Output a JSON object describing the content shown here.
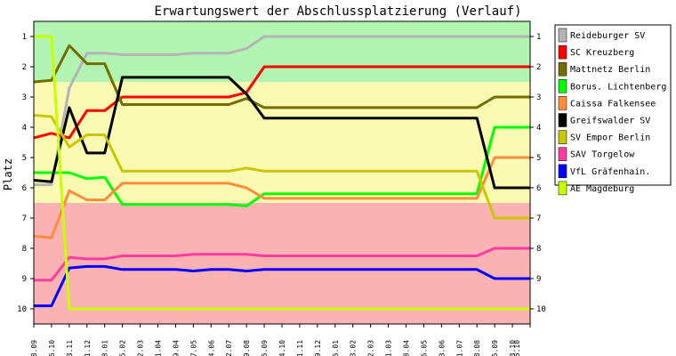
{
  "chart_data": {
    "type": "line",
    "title": "Erwartungswert der Abschlussplatzierung (Verlauf)",
    "xlabel": "",
    "ylabel": "Platz",
    "ylim": [
      10.5,
      0.5
    ],
    "y_ticks": [
      "1",
      "2",
      "3",
      "4",
      "5",
      "6",
      "7",
      "8",
      "9",
      "10"
    ],
    "bands": [
      {
        "from": 0.5,
        "to": 2.5,
        "color": "#b2f5b2"
      },
      {
        "from": 2.5,
        "to": 6.5,
        "color": "#fafab2"
      },
      {
        "from": 6.5,
        "to": 10.5,
        "color": "#fab2b2"
      }
    ],
    "x": [
      "18.09",
      "16.10",
      "13.11",
      "11.12",
      "08.01",
      "05.02",
      "02.03",
      "01.04",
      "29.04",
      "27.05",
      "24.06",
      "22.07",
      "19.08",
      "16.09",
      "14.10",
      "11.11",
      "09.12",
      "06.01",
      "03.02",
      "02.03",
      "31.03",
      "28.04",
      "26.05",
      "23.06",
      "21.07",
      "18.08",
      "15.09",
      "13.10",
      "16.10"
    ],
    "series": [
      {
        "name": "Reideburger SV",
        "color": "#b4b4b4",
        "values": [
          5.9,
          5.9,
          2.7,
          1.55,
          1.55,
          1.6,
          1.6,
          1.6,
          1.6,
          1.55,
          1.55,
          1.55,
          1.4,
          1.0,
          1.0,
          1.0,
          1.0,
          1.0,
          1.0,
          1.0,
          1.0,
          1.0,
          1.0,
          1.0,
          1.0,
          1.0,
          1.0,
          1.0,
          1.0
        ]
      },
      {
        "name": "SC Kreuzberg",
        "color": "#ff0000",
        "values": [
          4.35,
          4.2,
          4.35,
          3.45,
          3.45,
          3.0,
          3.0,
          3.0,
          3.0,
          3.0,
          3.0,
          3.0,
          2.85,
          2.0,
          2.0,
          2.0,
          2.0,
          2.0,
          2.0,
          2.0,
          2.0,
          2.0,
          2.0,
          2.0,
          2.0,
          2.0,
          2.0,
          2.0,
          2.0
        ]
      },
      {
        "name": "Mattnetz Berlin",
        "color": "#736e00",
        "values": [
          2.5,
          2.45,
          1.3,
          1.9,
          1.9,
          3.25,
          3.25,
          3.25,
          3.25,
          3.25,
          3.25,
          3.25,
          3.05,
          3.35,
          3.35,
          3.35,
          3.35,
          3.35,
          3.35,
          3.35,
          3.35,
          3.35,
          3.35,
          3.35,
          3.35,
          3.35,
          3.0,
          3.0,
          3.0
        ]
      },
      {
        "name": "Borus. Lichtenberg",
        "color": "#00ff00",
        "values": [
          5.5,
          5.5,
          5.5,
          5.7,
          5.65,
          6.55,
          6.55,
          6.55,
          6.55,
          6.55,
          6.55,
          6.55,
          6.6,
          6.2,
          6.2,
          6.2,
          6.2,
          6.2,
          6.2,
          6.2,
          6.2,
          6.2,
          6.2,
          6.2,
          6.2,
          6.2,
          4.0,
          4.0,
          4.0
        ]
      },
      {
        "name": "Caissa Falkensee",
        "color": "#ff8c3c",
        "values": [
          7.6,
          7.65,
          6.1,
          6.4,
          6.4,
          5.85,
          5.85,
          5.85,
          5.85,
          5.85,
          5.85,
          5.85,
          6.0,
          6.35,
          6.35,
          6.35,
          6.35,
          6.35,
          6.35,
          6.35,
          6.35,
          6.35,
          6.35,
          6.35,
          6.35,
          6.35,
          5.0,
          5.0,
          5.0
        ]
      },
      {
        "name": "Greifswalder SV",
        "color": "#000000",
        "values": [
          5.75,
          5.8,
          3.35,
          4.85,
          4.85,
          2.35,
          2.35,
          2.35,
          2.35,
          2.35,
          2.35,
          2.35,
          2.9,
          3.7,
          3.7,
          3.7,
          3.7,
          3.7,
          3.7,
          3.7,
          3.7,
          3.7,
          3.7,
          3.7,
          3.7,
          3.7,
          6.0,
          6.0,
          6.0
        ]
      },
      {
        "name": "SV Empor Berlin",
        "color": "#c8c800",
        "values": [
          3.6,
          3.65,
          4.65,
          4.25,
          4.25,
          5.45,
          5.45,
          5.45,
          5.45,
          5.45,
          5.45,
          5.45,
          5.35,
          5.45,
          5.45,
          5.45,
          5.45,
          5.45,
          5.45,
          5.45,
          5.45,
          5.45,
          5.45,
          5.45,
          5.45,
          5.45,
          7.0,
          7.0,
          7.0
        ]
      },
      {
        "name": "SAV Torgelow",
        "color": "#ff3ca0",
        "values": [
          9.05,
          9.05,
          8.3,
          8.35,
          8.35,
          8.25,
          8.25,
          8.25,
          8.25,
          8.2,
          8.2,
          8.2,
          8.2,
          8.25,
          8.25,
          8.25,
          8.25,
          8.25,
          8.25,
          8.25,
          8.25,
          8.25,
          8.25,
          8.25,
          8.25,
          8.25,
          8.0,
          8.0,
          8.0
        ]
      },
      {
        "name": "VfL Gräfenhain.",
        "color": "#0000ff",
        "values": [
          9.9,
          9.9,
          8.65,
          8.6,
          8.6,
          8.7,
          8.7,
          8.7,
          8.7,
          8.75,
          8.7,
          8.7,
          8.75,
          8.7,
          8.7,
          8.7,
          8.7,
          8.7,
          8.7,
          8.7,
          8.7,
          8.7,
          8.7,
          8.7,
          8.7,
          8.7,
          9.0,
          9.0,
          9.0
        ]
      },
      {
        "name": "AE Magdeburg",
        "color": "#c8ff00",
        "values": [
          1.0,
          1.0,
          10.0,
          10.0,
          10.0,
          10.0,
          10.0,
          10.0,
          10.0,
          10.0,
          10.0,
          10.0,
          10.0,
          10.0,
          10.0,
          10.0,
          10.0,
          10.0,
          10.0,
          10.0,
          10.0,
          10.0,
          10.0,
          10.0,
          10.0,
          10.0,
          10.0,
          10.0,
          10.0
        ]
      }
    ]
  }
}
